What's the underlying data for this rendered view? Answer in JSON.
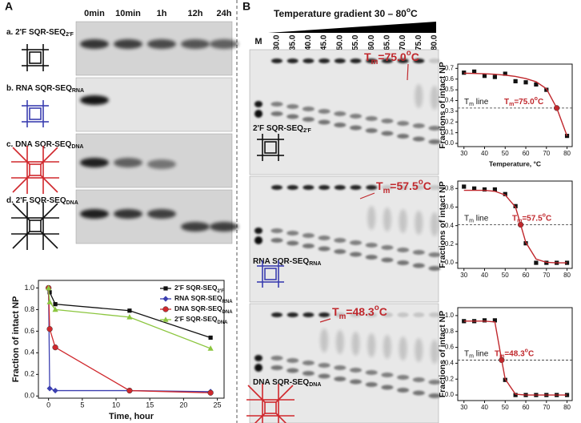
{
  "panel_a": {
    "label": "A",
    "lanes": [
      "0min",
      "10min",
      "1h",
      "12h",
      "24h"
    ],
    "rows": [
      {
        "label": [
          {
            "t": "a. 2'F SQR-SEQ"
          },
          {
            "sub": "2'F"
          }
        ]
      },
      {
        "label": [
          {
            "t": "b. RNA SQR-SEQ"
          },
          {
            "sub": "RNA"
          }
        ]
      },
      {
        "label": [
          {
            "t": "c. DNA SQR-SEQ"
          },
          {
            "sub": "DNA"
          }
        ]
      },
      {
        "label": [
          {
            "t": "d. 2'F SQR-SEQ"
          },
          {
            "sub": "DNA"
          }
        ]
      }
    ]
  },
  "panel_b": {
    "label": "B",
    "title": [
      {
        "t": "Temperature gradient 30 – 80"
      },
      {
        "sup": "o"
      },
      {
        "t": "C"
      }
    ],
    "marker": "M",
    "lanes": [
      "30.0",
      "35.0",
      "40.0",
      "45.0",
      "50.0",
      "55.0",
      "60.0",
      "65.0",
      "70.0",
      "75.0",
      "80.0"
    ],
    "gels": [
      {
        "label": [
          {
            "t": "2'F SQR-SEQ"
          },
          {
            "sub": "2'F"
          }
        ],
        "annotation": [
          {
            "t": "T"
          },
          {
            "sub": "m"
          },
          {
            "t": "=75.0"
          },
          {
            "sup": "o"
          },
          {
            "t": "C"
          }
        ]
      },
      {
        "label": [
          {
            "t": "RNA SQR-SEQ"
          },
          {
            "sub": "RNA"
          }
        ],
        "annotation": [
          {
            "t": "T"
          },
          {
            "sub": "m"
          },
          {
            "t": "=57.5"
          },
          {
            "sup": "o"
          },
          {
            "t": "C"
          }
        ]
      },
      {
        "label": [
          {
            "t": "DNA SQR-SEQ"
          },
          {
            "sub": "DNA"
          }
        ],
        "annotation": [
          {
            "t": "T"
          },
          {
            "sub": "m"
          },
          {
            "t": "=48.3"
          },
          {
            "sup": "o"
          },
          {
            "t": "C"
          }
        ]
      }
    ]
  },
  "chart_data": [
    {
      "type": "line",
      "x_label": "Time, hour",
      "y_label": "Fraction of intact NP",
      "x": [
        0,
        0.17,
        1,
        12,
        24
      ],
      "xlim": [
        -1.5,
        26
      ],
      "xticks": [
        0,
        5,
        10,
        15,
        20,
        25
      ],
      "ylim": [
        -0.02,
        1.07
      ],
      "yticks": [
        {
          "value": 0,
          "label": "0.0"
        },
        {
          "value": 0.2,
          "label": "0.2"
        },
        {
          "value": 0.4,
          "label": "0.4"
        },
        {
          "value": 0.6,
          "label": "0.6"
        },
        {
          "value": 0.8,
          "label": "0.8"
        },
        {
          "value": 1,
          "label": "1.0"
        }
      ],
      "legend": "upper right",
      "series": [
        {
          "name": "2'F SQR-SEQ",
          "name_sub": "2'F",
          "color": "#111111",
          "marker": "square",
          "line": true,
          "values": [
            1.0,
            0.96,
            0.85,
            0.79,
            0.54
          ]
        },
        {
          "name": "RNA SQR-SEQ",
          "name_sub": "RNA",
          "color": "#3b3fb0",
          "marker": "diamond",
          "line": true,
          "values": [
            1.0,
            0.07,
            0.05,
            0.05,
            0.04
          ]
        },
        {
          "name": "DNA SQR-SEQ",
          "name_sub": "DNA",
          "color": "#d0282d",
          "marker": "circle",
          "line": true,
          "values": [
            1.0,
            0.62,
            0.45,
            0.05,
            0.03
          ]
        },
        {
          "name": "2'F SQR-SEQ",
          "name_sub": "DNA",
          "color": "#8cc63f",
          "marker": "triangle",
          "line": true,
          "values": [
            1.0,
            0.87,
            0.8,
            0.73,
            0.44
          ]
        }
      ]
    },
    {
      "type": "line",
      "x_label": "Temperature, °C",
      "y_label": "Fractions of intact NP",
      "x": [
        30,
        35,
        40,
        45,
        50,
        55,
        60,
        65,
        70,
        75,
        80
      ],
      "xlim": [
        27,
        82.5
      ],
      "xticks": [
        30,
        40,
        50,
        60,
        70,
        80
      ],
      "ylim": [
        -0.03,
        0.74
      ],
      "yticks": [
        {
          "value": 0,
          "label": "0.0"
        },
        {
          "value": 0.1,
          "label": "0.1"
        },
        {
          "value": 0.2,
          "label": "0.2"
        },
        {
          "value": 0.3,
          "label": "0.3"
        },
        {
          "value": 0.4,
          "label": "0.4"
        },
        {
          "value": 0.5,
          "label": "0.5"
        },
        {
          "value": 0.6,
          "label": "0.6"
        },
        {
          "value": 0.7,
          "label": "0.7"
        }
      ],
      "tm_line": {
        "value": 0.33,
        "label": [
          {
            "t": "T"
          },
          {
            "sub": "m"
          },
          {
            "t": " line"
          }
        ]
      },
      "annotation": [
        {
          "t": "T"
        },
        {
          "sub": "m"
        },
        {
          "t": "=75.0"
        },
        {
          "sup": "o"
        },
        {
          "t": "C"
        }
      ],
      "series": [
        {
          "color": "#111111",
          "marker": "square",
          "line": false,
          "values": [
            0.66,
            0.67,
            0.63,
            0.62,
            0.65,
            0.58,
            0.57,
            0.55,
            0.5,
            null,
            0.07
          ]
        },
        {
          "color": "#c0282d",
          "marker": "circle",
          "line": false,
          "values": [
            null,
            null,
            null,
            null,
            null,
            null,
            null,
            null,
            null,
            0.33,
            null
          ]
        },
        {
          "color": "#c0282d",
          "marker": "none",
          "line": true,
          "values": [
            0.655,
            0.653,
            0.65,
            0.645,
            0.637,
            0.625,
            0.605,
            0.575,
            0.51,
            0.33,
            0.07
          ]
        }
      ]
    },
    {
      "type": "line",
      "y_label": "Fractions of intact NP",
      "x": [
        30,
        35,
        40,
        45,
        50,
        55,
        57.5,
        60,
        65,
        70,
        75,
        80
      ],
      "xlim": [
        27,
        82.5
      ],
      "xticks": [
        30,
        40,
        50,
        60,
        70,
        80
      ],
      "ylim": [
        -0.06,
        0.88
      ],
      "yticks": [
        {
          "value": 0,
          "label": "0.0"
        },
        {
          "value": 0.2,
          "label": "0.2"
        },
        {
          "value": 0.4,
          "label": "0.4"
        },
        {
          "value": 0.6,
          "label": "0.6"
        },
        {
          "value": 0.8,
          "label": "0.8"
        }
      ],
      "tm_line": {
        "value": 0.41,
        "label": [
          {
            "t": "T"
          },
          {
            "sub": "m"
          },
          {
            "t": " line"
          }
        ]
      },
      "annotation": [
        {
          "t": "T"
        },
        {
          "sub": "m"
        },
        {
          "t": "=57.5"
        },
        {
          "sup": "o"
        },
        {
          "t": "C"
        }
      ],
      "series": [
        {
          "color": "#111111",
          "marker": "square",
          "line": false,
          "values": [
            0.82,
            0.8,
            0.79,
            0.79,
            0.74,
            0.61,
            null,
            0.21,
            0.0,
            0.0,
            0.0,
            0.0
          ]
        },
        {
          "color": "#c0282d",
          "marker": "circle",
          "line": false,
          "values": [
            null,
            null,
            null,
            null,
            null,
            null,
            0.41,
            null,
            null,
            null,
            null,
            null
          ]
        },
        {
          "color": "#c0282d",
          "marker": "none",
          "line": true,
          "values": [
            0.78,
            0.78,
            0.78,
            0.77,
            0.73,
            0.6,
            0.41,
            0.22,
            0.04,
            0.005,
            0,
            0
          ]
        }
      ]
    },
    {
      "type": "line",
      "y_label": "Fractions of intact NP",
      "x": [
        30,
        35,
        40,
        45,
        48.3,
        50,
        55,
        60,
        65,
        70,
        75,
        80
      ],
      "xlim": [
        27,
        82.5
      ],
      "xticks": [
        30,
        40,
        50,
        60,
        70,
        80
      ],
      "ylim": [
        -0.07,
        1.1
      ],
      "yticks": [
        {
          "value": 0,
          "label": "0.0"
        },
        {
          "value": 0.2,
          "label": "0.2"
        },
        {
          "value": 0.4,
          "label": "0.4"
        },
        {
          "value": 0.6,
          "label": "0.6"
        },
        {
          "value": 0.8,
          "label": "0.8"
        },
        {
          "value": 1,
          "label": "1.0"
        }
      ],
      "tm_line": {
        "value": 0.44,
        "label": [
          {
            "t": "T"
          },
          {
            "sub": "m"
          },
          {
            "t": " line"
          }
        ]
      },
      "annotation": [
        {
          "t": "T"
        },
        {
          "sub": "m"
        },
        {
          "t": "=48.3"
        },
        {
          "sup": "o"
        },
        {
          "t": "C"
        }
      ],
      "series": [
        {
          "color": "#111111",
          "marker": "square",
          "line": false,
          "values": [
            0.93,
            0.93,
            0.94,
            0.94,
            null,
            0.19,
            0.0,
            0,
            0,
            0,
            0,
            0
          ]
        },
        {
          "color": "#c0282d",
          "marker": "circle",
          "line": false,
          "values": [
            null,
            null,
            null,
            null,
            0.44,
            null,
            null,
            null,
            null,
            null,
            null,
            null
          ]
        },
        {
          "color": "#c0282d",
          "marker": "none",
          "line": true,
          "values": [
            0.93,
            0.93,
            0.93,
            0.92,
            0.44,
            0.2,
            0.01,
            0,
            0,
            0,
            0,
            0
          ]
        }
      ]
    }
  ]
}
